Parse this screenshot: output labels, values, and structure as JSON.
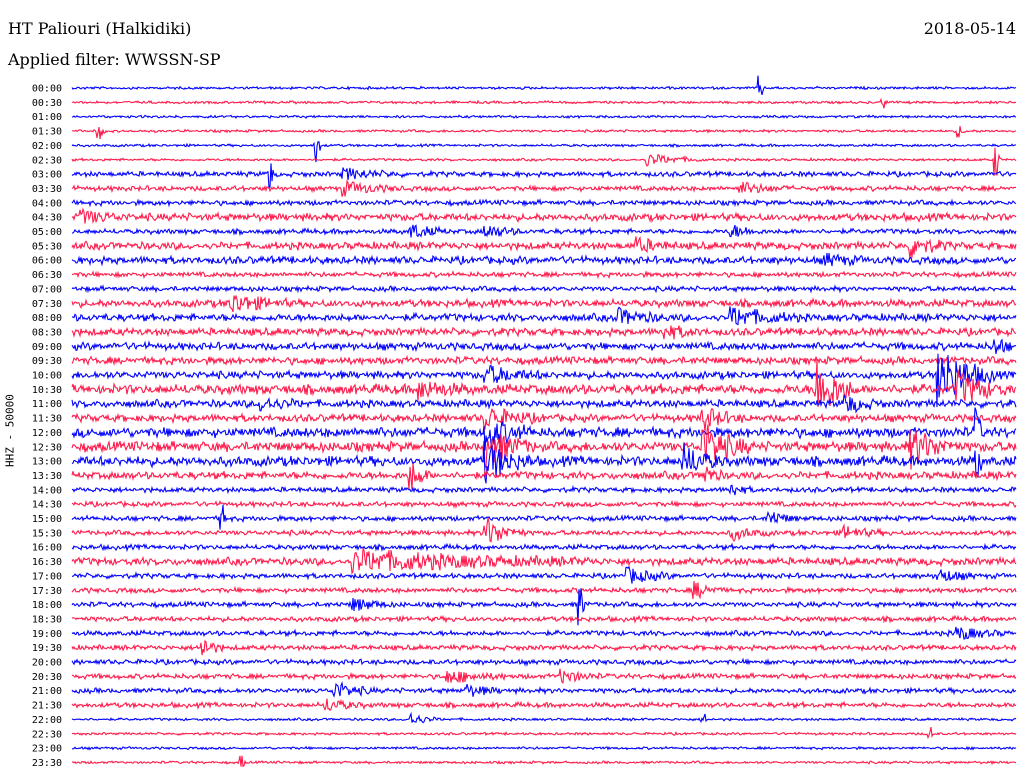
{
  "header": {
    "station": "HT Paliouri (Halkidiki)",
    "date": "2018-05-14",
    "filter": "Applied filter: WWSSN-SP"
  },
  "chart_data": {
    "type": "line",
    "ylabel": "HHZ - 50000",
    "colors": [
      "#0000ff",
      "#ff1a4b"
    ],
    "categories": [
      "00:00",
      "00:30",
      "01:00",
      "01:30",
      "02:00",
      "02:30",
      "03:00",
      "03:30",
      "04:00",
      "04:30",
      "05:00",
      "05:30",
      "06:00",
      "06:30",
      "07:00",
      "07:30",
      "08:00",
      "08:30",
      "09:00",
      "09:30",
      "10:00",
      "10:30",
      "11:00",
      "11:30",
      "12:00",
      "12:30",
      "13:00",
      "13:30",
      "14:00",
      "14:30",
      "15:00",
      "15:30",
      "16:00",
      "16:30",
      "17:00",
      "17:30",
      "18:00",
      "18:30",
      "19:00",
      "19:30",
      "20:00",
      "20:30",
      "21:00",
      "21:30",
      "22:00",
      "22:30",
      "23:00",
      "23:30"
    ],
    "noise": [
      1,
      1,
      1,
      1,
      1,
      1,
      2,
      2,
      2,
      3,
      2,
      3,
      3,
      2,
      2,
      3,
      3,
      3,
      3,
      3,
      3,
      4,
      3,
      3,
      4,
      4,
      4,
      3,
      2,
      2,
      2,
      2,
      2,
      3,
      2,
      2,
      2,
      2,
      2,
      2,
      2,
      2,
      2,
      2,
      1,
      1,
      1,
      1
    ],
    "events": [
      {
        "row": 0,
        "x": 0.73,
        "amp": 12,
        "dur": 0.004
      },
      {
        "row": 1,
        "x": 0.86,
        "amp": 6,
        "dur": 0.004
      },
      {
        "row": 3,
        "x": 0.03,
        "amp": 8,
        "dur": 0.006
      },
      {
        "row": 3,
        "x": 0.94,
        "amp": 6,
        "dur": 0.006
      },
      {
        "row": 4,
        "x": 0.26,
        "amp": 18,
        "dur": 0.003
      },
      {
        "row": 5,
        "x": 0.61,
        "amp": 6,
        "dur": 0.06
      },
      {
        "row": 5,
        "x": 0.98,
        "amp": 18,
        "dur": 0.004
      },
      {
        "row": 6,
        "x": 0.21,
        "amp": 20,
        "dur": 0.004
      },
      {
        "row": 6,
        "x": 0.29,
        "amp": 5,
        "dur": 0.06
      },
      {
        "row": 7,
        "x": 0.29,
        "amp": 6,
        "dur": 0.06
      },
      {
        "row": 7,
        "x": 0.71,
        "amp": 5,
        "dur": 0.05
      },
      {
        "row": 9,
        "x": 0.01,
        "amp": 6,
        "dur": 0.05
      },
      {
        "row": 10,
        "x": 0.36,
        "amp": 7,
        "dur": 0.04
      },
      {
        "row": 10,
        "x": 0.44,
        "amp": 6,
        "dur": 0.04
      },
      {
        "row": 10,
        "x": 0.7,
        "amp": 6,
        "dur": 0.03
      },
      {
        "row": 11,
        "x": 0.6,
        "amp": 6,
        "dur": 0.04
      },
      {
        "row": 11,
        "x": 0.89,
        "amp": 10,
        "dur": 0.04
      },
      {
        "row": 12,
        "x": 0.8,
        "amp": 5,
        "dur": 0.04
      },
      {
        "row": 15,
        "x": 0.17,
        "amp": 9,
        "dur": 0.06
      },
      {
        "row": 16,
        "x": 0.58,
        "amp": 7,
        "dur": 0.05
      },
      {
        "row": 16,
        "x": 0.7,
        "amp": 9,
        "dur": 0.07
      },
      {
        "row": 17,
        "x": 0.63,
        "amp": 6,
        "dur": 0.04
      },
      {
        "row": 18,
        "x": 0.98,
        "amp": 8,
        "dur": 0.02
      },
      {
        "row": 20,
        "x": 0.44,
        "amp": 8,
        "dur": 0.06
      },
      {
        "row": 20,
        "x": 0.92,
        "amp": 30,
        "dur": 0.06
      },
      {
        "row": 21,
        "x": 0.37,
        "amp": 8,
        "dur": 0.05
      },
      {
        "row": 21,
        "x": 0.79,
        "amp": 30,
        "dur": 0.04
      },
      {
        "row": 21,
        "x": 0.94,
        "amp": 15,
        "dur": 0.05
      },
      {
        "row": 22,
        "x": 0.2,
        "amp": 6,
        "dur": 0.05
      },
      {
        "row": 22,
        "x": 0.82,
        "amp": 8,
        "dur": 0.04
      },
      {
        "row": 23,
        "x": 0.44,
        "amp": 10,
        "dur": 0.06
      },
      {
        "row": 23,
        "x": 0.67,
        "amp": 10,
        "dur": 0.04
      },
      {
        "row": 24,
        "x": 0.44,
        "amp": 14,
        "dur": 0.05
      },
      {
        "row": 24,
        "x": 0.96,
        "amp": 25,
        "dur": 0.004
      },
      {
        "row": 25,
        "x": 0.44,
        "amp": 18,
        "dur": 0.05
      },
      {
        "row": 25,
        "x": 0.67,
        "amp": 22,
        "dur": 0.05
      },
      {
        "row": 25,
        "x": 0.89,
        "amp": 18,
        "dur": 0.05
      },
      {
        "row": 26,
        "x": 0.44,
        "amp": 18,
        "dur": 0.05
      },
      {
        "row": 26,
        "x": 0.65,
        "amp": 14,
        "dur": 0.04
      },
      {
        "row": 26,
        "x": 0.96,
        "amp": 20,
        "dur": 0.004
      },
      {
        "row": 27,
        "x": 0.36,
        "amp": 14,
        "dur": 0.02
      },
      {
        "row": 27,
        "x": 0.67,
        "amp": 10,
        "dur": 0.02
      },
      {
        "row": 28,
        "x": 0.7,
        "amp": 6,
        "dur": 0.02
      },
      {
        "row": 30,
        "x": 0.16,
        "amp": 12,
        "dur": 0.004
      },
      {
        "row": 30,
        "x": 0.74,
        "amp": 7,
        "dur": 0.03
      },
      {
        "row": 31,
        "x": 0.44,
        "amp": 14,
        "dur": 0.04
      },
      {
        "row": 31,
        "x": 0.7,
        "amp": 6,
        "dur": 0.04
      },
      {
        "row": 31,
        "x": 0.82,
        "amp": 6,
        "dur": 0.04
      },
      {
        "row": 33,
        "x": 0.3,
        "amp": 10,
        "dur": 0.25
      },
      {
        "row": 34,
        "x": 0.59,
        "amp": 7,
        "dur": 0.05
      },
      {
        "row": 34,
        "x": 0.92,
        "amp": 6,
        "dur": 0.04
      },
      {
        "row": 35,
        "x": 0.66,
        "amp": 8,
        "dur": 0.03
      },
      {
        "row": 36,
        "x": 0.3,
        "amp": 6,
        "dur": 0.04
      },
      {
        "row": 36,
        "x": 0.54,
        "amp": 20,
        "dur": 0.004
      },
      {
        "row": 38,
        "x": 0.94,
        "amp": 6,
        "dur": 0.05
      },
      {
        "row": 39,
        "x": 0.14,
        "amp": 10,
        "dur": 0.02
      },
      {
        "row": 41,
        "x": 0.4,
        "amp": 6,
        "dur": 0.06
      },
      {
        "row": 41,
        "x": 0.52,
        "amp": 6,
        "dur": 0.04
      },
      {
        "row": 42,
        "x": 0.28,
        "amp": 8,
        "dur": 0.04
      },
      {
        "row": 42,
        "x": 0.42,
        "amp": 5,
        "dur": 0.04
      },
      {
        "row": 43,
        "x": 0.27,
        "amp": 6,
        "dur": 0.04
      },
      {
        "row": 44,
        "x": 0.36,
        "amp": 6,
        "dur": 0.03
      },
      {
        "row": 44,
        "x": 0.67,
        "amp": 8,
        "dur": 0.004
      },
      {
        "row": 45,
        "x": 0.91,
        "amp": 7,
        "dur": 0.004
      },
      {
        "row": 47,
        "x": 0.18,
        "amp": 8,
        "dur": 0.004
      }
    ]
  }
}
